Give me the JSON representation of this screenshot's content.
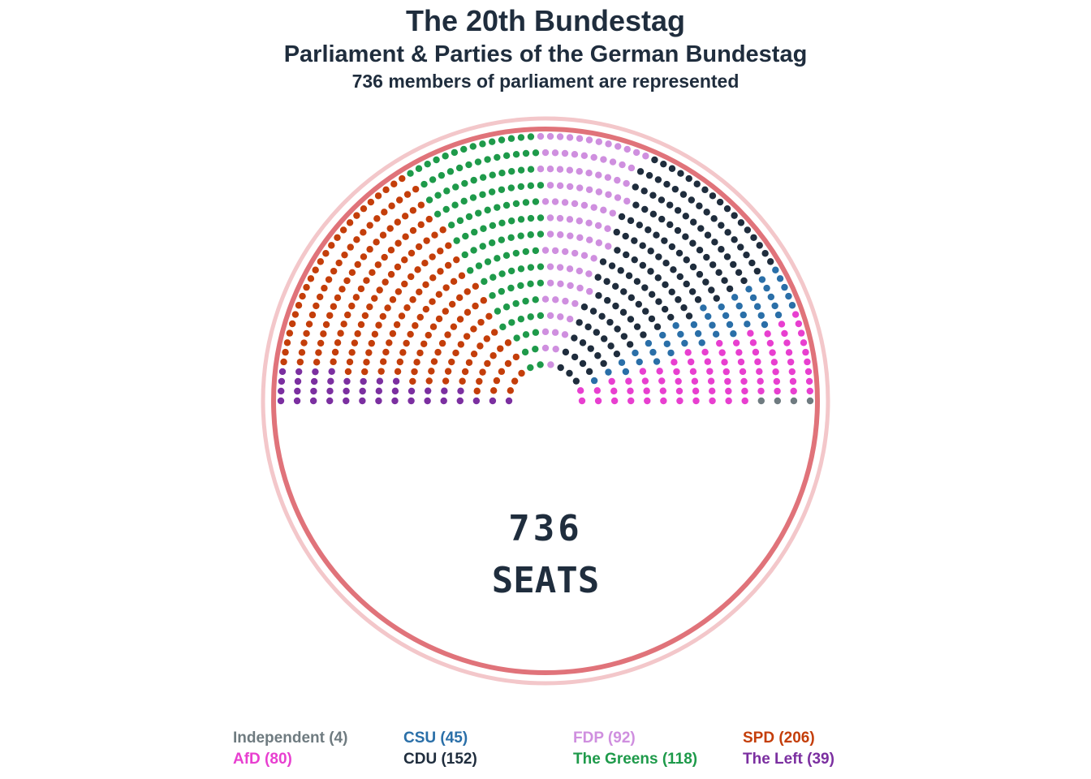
{
  "chart_data": {
    "type": "parliament",
    "title": "The 20th Bundestag",
    "subtitle": "Parliament & Parties of the German Bundestag",
    "caption": "736 members of parliament are represented",
    "center_number": "736",
    "center_label": "SEATS",
    "total_seats": 736,
    "series": [
      {
        "name": "The Left",
        "seats": 39,
        "color": "#7b2fa0",
        "legend_text": "The Left (39)"
      },
      {
        "name": "SPD",
        "seats": 206,
        "color": "#c43e0a",
        "legend_text": "SPD (206)"
      },
      {
        "name": "The Greens",
        "seats": 118,
        "color": "#1e9a4a",
        "legend_text": "The Greens (118)"
      },
      {
        "name": "FDP",
        "seats": 92,
        "color": "#cf8fdf",
        "legend_text": "FDP (92)"
      },
      {
        "name": "CDU",
        "seats": 152,
        "color": "#1f2d3d",
        "legend_text": "CDU (152)"
      },
      {
        "name": "CSU",
        "seats": 45,
        "color": "#2a6fa8",
        "legend_text": "CSU (45)"
      },
      {
        "name": "AfD",
        "seats": 80,
        "color": "#e83fd0",
        "legend_text": "AfD (80)"
      },
      {
        "name": "Independent",
        "seats": 4,
        "color": "#6f7b80",
        "legend_text": "Independent (4)"
      }
    ],
    "legend_order": [
      "Independent",
      "CSU",
      "FDP",
      "SPD",
      "AfD",
      "CDU",
      "The Greens",
      "The Left"
    ],
    "legend_placement": "bottom",
    "ring_color": "#e0737a"
  }
}
